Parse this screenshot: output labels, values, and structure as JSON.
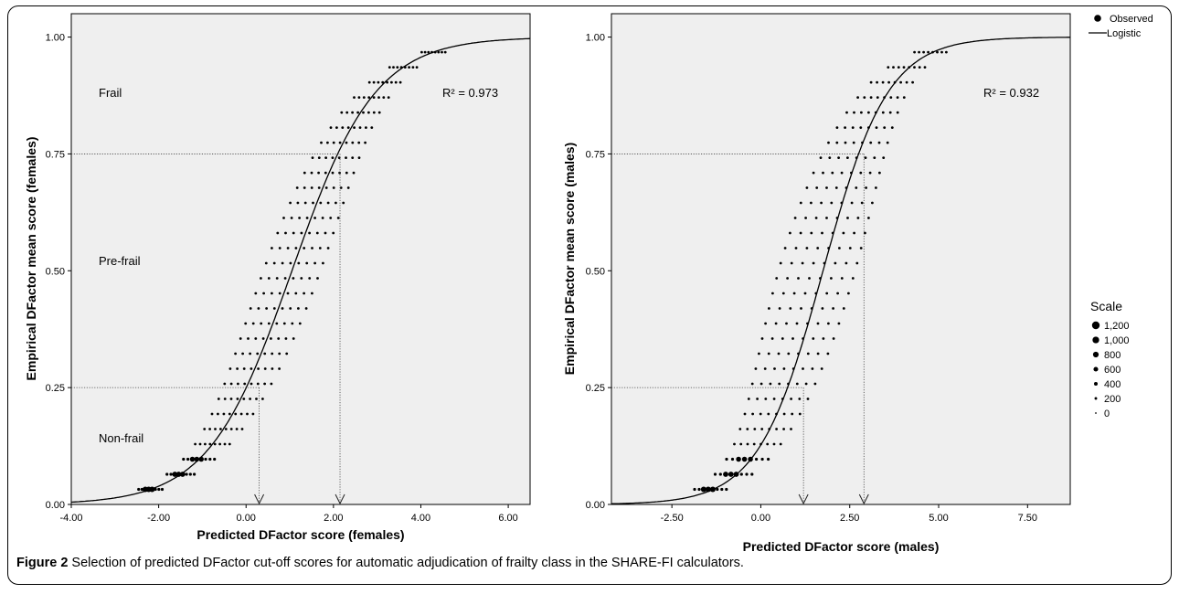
{
  "chart_data": [
    {
      "type": "scatter",
      "xlabel": "Predicted DFactor score (females)",
      "ylabel": "Empirical DFactor mean score (females)",
      "xlim": [
        -4.0,
        6.5
      ],
      "ylim": [
        0.0,
        1.05
      ],
      "xticks": [
        "-4.00",
        "-2.00",
        "0.00",
        "2.00",
        "4.00",
        "6.00"
      ],
      "yticks": [
        "0.00",
        "0.25",
        "0.50",
        "0.75",
        "1.00"
      ],
      "r2_label": "R² = 0.973",
      "regions": [
        "Frail",
        "Pre-frail",
        "Non-frail"
      ],
      "logistic": {
        "midpoint": 1.05,
        "slope": 1.05
      },
      "cutoffs": [
        {
          "y": 0.25,
          "x": 0.3
        },
        {
          "y": 0.75,
          "x": 2.15
        }
      ],
      "scatter_band": {
        "x_shift_min": -0.65,
        "x_shift_max": 0.65
      },
      "grid": false,
      "background": "#efefef"
    },
    {
      "type": "scatter",
      "xlabel": "Predicted DFactor score (males)",
      "ylabel": "Empirical DFactor mean score (males)",
      "xlim": [
        -4.2,
        8.7
      ],
      "ylim": [
        0.0,
        1.05
      ],
      "xticks": [
        "-2.50",
        "0.00",
        "2.50",
        "5.00",
        "7.50"
      ],
      "yticks": [
        "0.00",
        "0.25",
        "0.50",
        "0.75",
        "1.00"
      ],
      "r2_label": "R² = 0.932",
      "logistic": {
        "midpoint": 1.75,
        "slope": 1.1
      },
      "cutoffs": [
        {
          "y": 0.25,
          "x": 1.2
        },
        {
          "y": 0.75,
          "x": 2.9
        }
      ],
      "scatter_band": {
        "x_shift_min": -1.25,
        "x_shift_max": 0.9
      },
      "grid": false,
      "background": "#efefef"
    }
  ],
  "legend": {
    "observed": "Observed",
    "logistic": "Logistic",
    "scale_title": "Scale",
    "scale_items": [
      "1,200",
      "1,000",
      "800",
      "600",
      "400",
      "200",
      "0"
    ]
  },
  "caption": {
    "label": "Figure 2",
    "text": " Selection of predicted DFactor cut-off scores for automatic adjudication of frailty class in the SHARE-FI calculators."
  }
}
